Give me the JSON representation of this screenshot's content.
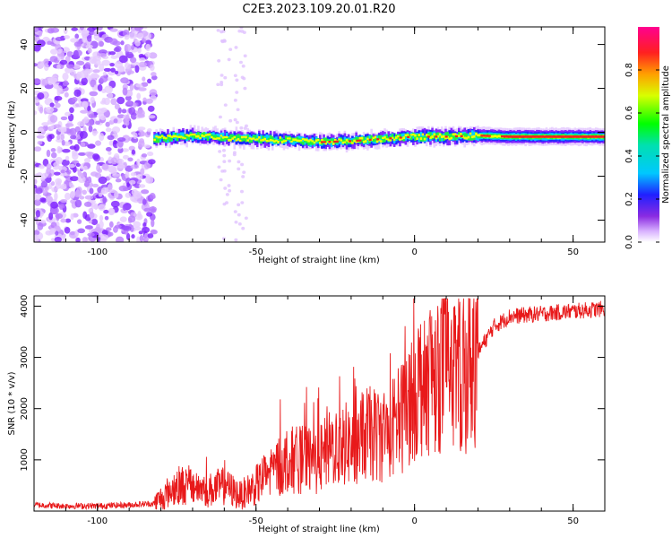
{
  "title": "C2E3.2023.109.20.01.R20",
  "colors": {
    "snr_line": "#e8191a",
    "axis": "#000000",
    "background": "#ffffff"
  },
  "chart_data": [
    {
      "type": "heatmap",
      "xlabel": "Height of straight line (km)",
      "ylabel": "Frequency (Hz)",
      "xlim": [
        -120,
        60
      ],
      "ylim": [
        -50,
        48
      ],
      "x_ticks": [
        "-100",
        "-50",
        "0",
        "50"
      ],
      "y_ticks": [
        "-40",
        "-20",
        "0",
        "20",
        "40"
      ],
      "colorbar": {
        "label": "Normalized spectral amplitude",
        "range": [
          0,
          1
        ],
        "ticks": [
          "0.0",
          "0.2",
          "0.4",
          "0.6",
          "0.8"
        ],
        "colormap": "rainbow: white -> violet -> blue -> cyan -> green -> yellow -> red -> magenta"
      },
      "signal_track": {
        "start_height_km": -82,
        "end_height_km": 60,
        "center_frequency_hz": [
          [
            -82,
            -3
          ],
          [
            -70,
            -1.5
          ],
          [
            -60,
            -2.5
          ],
          [
            -50,
            -3
          ],
          [
            -40,
            -3.5
          ],
          [
            -30,
            -4.5
          ],
          [
            -20,
            -4
          ],
          [
            -10,
            -3
          ],
          [
            0,
            -2
          ],
          [
            10,
            -2
          ],
          [
            20,
            -1.5
          ],
          [
            30,
            -2
          ],
          [
            40,
            -2
          ],
          [
            50,
            -2
          ],
          [
            60,
            -2
          ]
        ],
        "noise_floor_region_km": [
          -120,
          -82
        ]
      }
    },
    {
      "type": "line",
      "xlabel": "Height of straight line (km)",
      "ylabel": "SNR (10 * v/v)",
      "xlim": [
        -120,
        60
      ],
      "ylim": [
        0,
        4200
      ],
      "x_ticks": [
        "-100",
        "-50",
        "0",
        "50"
      ],
      "y_ticks": [
        "1000",
        "2000",
        "3000",
        "4000"
      ],
      "series": [
        {
          "points": [
            [
              -120,
              120
            ],
            [
              -110,
              100
            ],
            [
              -100,
              100
            ],
            [
              -90,
              120
            ],
            [
              -82,
              150
            ],
            [
              -75,
              500
            ],
            [
              -70,
              500
            ],
            [
              -65,
              400
            ],
            [
              -60,
              500
            ],
            [
              -55,
              300
            ],
            [
              -50,
              500
            ],
            [
              -45,
              800
            ],
            [
              -40,
              1000
            ],
            [
              -35,
              1000
            ],
            [
              -30,
              1000
            ],
            [
              -25,
              1300
            ],
            [
              -20,
              1300
            ],
            [
              -15,
              1500
            ],
            [
              -10,
              1500
            ],
            [
              -5,
              1700
            ],
            [
              0,
              2400
            ],
            [
              5,
              2700
            ],
            [
              10,
              2800
            ],
            [
              15,
              2600
            ],
            [
              20,
              3100
            ],
            [
              25,
              3600
            ],
            [
              30,
              3800
            ],
            [
              40,
              3850
            ],
            [
              50,
              3900
            ],
            [
              60,
              3950
            ]
          ]
        }
      ]
    }
  ]
}
